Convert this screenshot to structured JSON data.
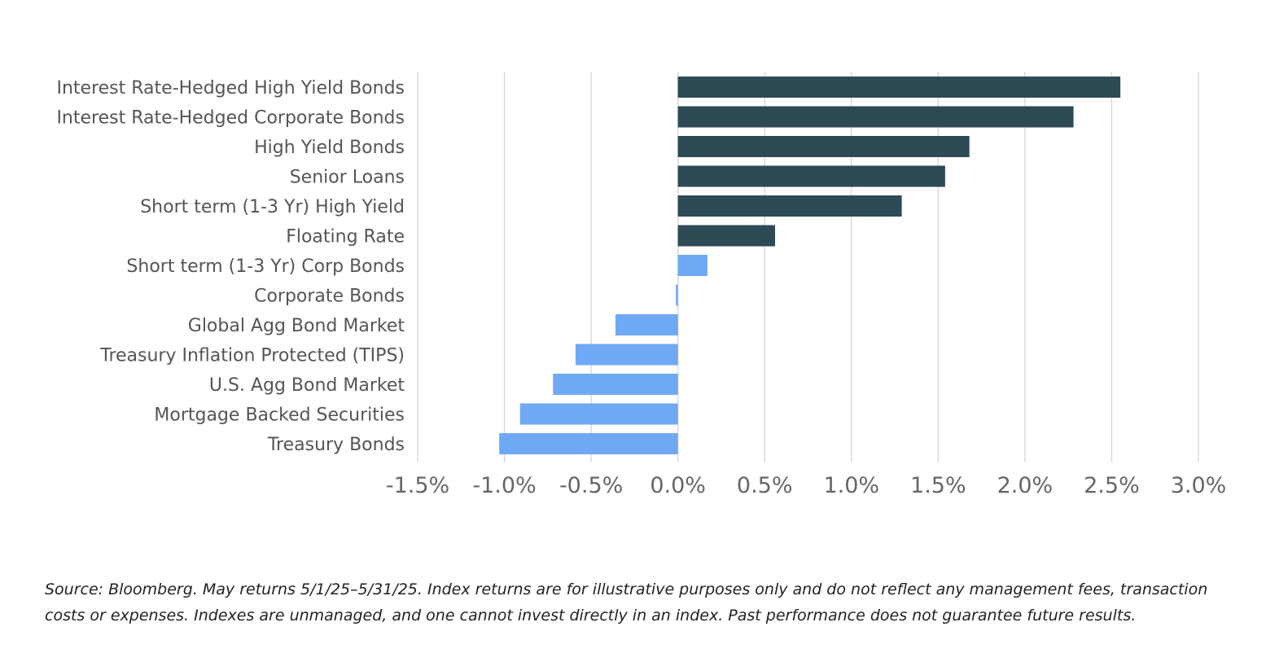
{
  "chart_data": {
    "type": "bar",
    "orientation": "horizontal",
    "categories": [
      "Interest Rate-Hedged High Yield Bonds",
      "Interest Rate-Hedged Corporate Bonds",
      "High Yield Bonds",
      "Senior Loans",
      "Short term (1-3 Yr) High Yield",
      "Floating Rate",
      "Short term (1-3 Yr) Corp Bonds",
      "Corporate Bonds",
      "Global Agg Bond Market",
      "Treasury Inflation Protected (TIPS)",
      "U.S. Agg Bond Market",
      "Mortgage Backed Securities",
      "Treasury Bonds"
    ],
    "values": [
      2.55,
      2.28,
      1.68,
      1.54,
      1.29,
      0.56,
      0.17,
      -0.01,
      -0.36,
      -0.59,
      -0.72,
      -0.91,
      -1.03
    ],
    "colors": [
      "#2e4a55",
      "#2e4a55",
      "#2e4a55",
      "#2e4a55",
      "#2e4a55",
      "#2e4a55",
      "#6fa8f5",
      "#6fa8f5",
      "#6fa8f5",
      "#6fa8f5",
      "#6fa8f5",
      "#6fa8f5",
      "#6fa8f5"
    ],
    "xlim": [
      -1.5,
      3.0
    ],
    "xticks": [
      -1.5,
      -1.0,
      -0.5,
      0.0,
      0.5,
      1.0,
      1.5,
      2.0,
      2.5,
      3.0
    ],
    "xtick_labels": [
      "-1.5%",
      "-1.0%",
      "-0.5%",
      "0.0%",
      "0.5%",
      "1.0%",
      "1.5%",
      "2.0%",
      "2.5%",
      "3.0%"
    ],
    "grid": true,
    "title": "",
    "xlabel": "",
    "ylabel": ""
  },
  "footnote": "Source: Bloomberg. May returns 5/1/25–5/31/25. Index returns are for illustrative purposes only and do not reflect any management fees, transaction costs or expenses. Indexes are unmanaged, and one cannot invest directly in an index. Past performance does not guarantee future results."
}
